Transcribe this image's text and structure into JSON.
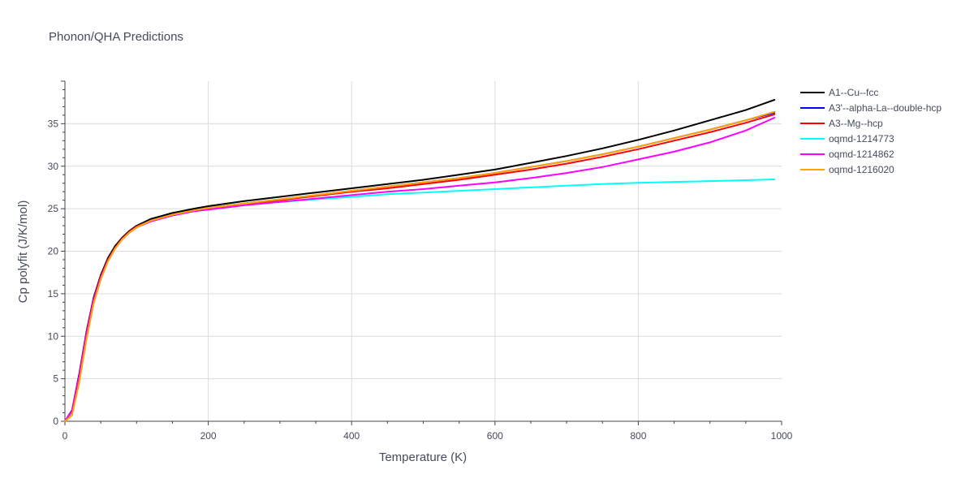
{
  "chart_data": {
    "type": "line",
    "title": "Phonon/QHA Predictions",
    "xlabel": "Temperature (K)",
    "ylabel": "Cp polyfit (J/K/mol)",
    "xlim": [
      0,
      1000
    ],
    "ylim": [
      0,
      40
    ],
    "xticks": [
      0,
      200,
      400,
      600,
      800,
      1000
    ],
    "yticks": [
      0,
      5,
      10,
      15,
      20,
      25,
      30,
      35
    ],
    "grid": true,
    "legend_position": "top-right",
    "x": [
      0,
      10,
      20,
      30,
      40,
      50,
      60,
      70,
      80,
      90,
      100,
      120,
      150,
      180,
      200,
      250,
      300,
      350,
      400,
      450,
      500,
      550,
      600,
      650,
      700,
      750,
      800,
      850,
      900,
      950,
      990
    ],
    "series": [
      {
        "name": "A1--Cu--fcc",
        "color": "#000000",
        "values": [
          0,
          1.3,
          5.6,
          10.5,
          14.5,
          17.2,
          19.2,
          20.6,
          21.6,
          22.4,
          23.0,
          23.8,
          24.5,
          25.0,
          25.3,
          25.9,
          26.4,
          26.9,
          27.4,
          27.9,
          28.4,
          29.0,
          29.6,
          30.4,
          31.2,
          32.1,
          33.1,
          34.2,
          35.4,
          36.6,
          37.8
        ]
      },
      {
        "name": "A3'--alpha-La--double-hcp",
        "color": "#0000ff",
        "values": [
          0,
          1.2,
          5.4,
          10.3,
          14.3,
          17.0,
          19.0,
          20.4,
          21.5,
          22.3,
          22.9,
          23.6,
          24.3,
          24.8,
          25.1,
          25.6,
          26.1,
          26.6,
          27.1,
          27.6,
          28.1,
          28.6,
          29.2,
          29.9,
          30.6,
          31.4,
          32.3,
          33.3,
          34.3,
          35.4,
          36.3
        ]
      },
      {
        "name": "A3--Mg--hcp",
        "color": "#ff0000",
        "values": [
          0,
          1.2,
          5.4,
          10.3,
          14.3,
          17.0,
          19.0,
          20.4,
          21.5,
          22.3,
          22.9,
          23.6,
          24.3,
          24.8,
          25.0,
          25.5,
          26.0,
          26.5,
          27.0,
          27.4,
          27.9,
          28.4,
          29.0,
          29.6,
          30.3,
          31.1,
          32.0,
          33.0,
          34.0,
          35.1,
          36.1
        ]
      },
      {
        "name": "oqmd-1214773",
        "color": "#00ffff",
        "values": [
          0,
          1.0,
          5.0,
          9.8,
          13.9,
          16.7,
          18.8,
          20.3,
          21.4,
          22.2,
          22.8,
          23.6,
          24.2,
          24.7,
          24.9,
          25.4,
          25.8,
          26.1,
          26.4,
          26.7,
          26.9,
          27.1,
          27.3,
          27.5,
          27.7,
          27.9,
          28.05,
          28.15,
          28.25,
          28.35,
          28.45
        ]
      },
      {
        "name": "oqmd-1214862",
        "color": "#ff00ff",
        "values": [
          0,
          1.2,
          5.3,
          10.2,
          14.2,
          16.9,
          18.9,
          20.3,
          21.4,
          22.2,
          22.8,
          23.5,
          24.2,
          24.7,
          24.9,
          25.4,
          25.8,
          26.2,
          26.6,
          27.0,
          27.3,
          27.7,
          28.1,
          28.6,
          29.2,
          29.9,
          30.8,
          31.7,
          32.8,
          34.2,
          35.7
        ]
      },
      {
        "name": "oqmd-1216020",
        "color": "#ffa500",
        "values": [
          0,
          0.7,
          4.6,
          9.6,
          13.8,
          16.7,
          18.8,
          20.3,
          21.4,
          22.2,
          22.8,
          23.6,
          24.3,
          24.8,
          25.1,
          25.6,
          26.1,
          26.6,
          27.1,
          27.6,
          28.1,
          28.6,
          29.2,
          29.9,
          30.6,
          31.4,
          32.3,
          33.3,
          34.3,
          35.4,
          36.4
        ]
      }
    ]
  }
}
